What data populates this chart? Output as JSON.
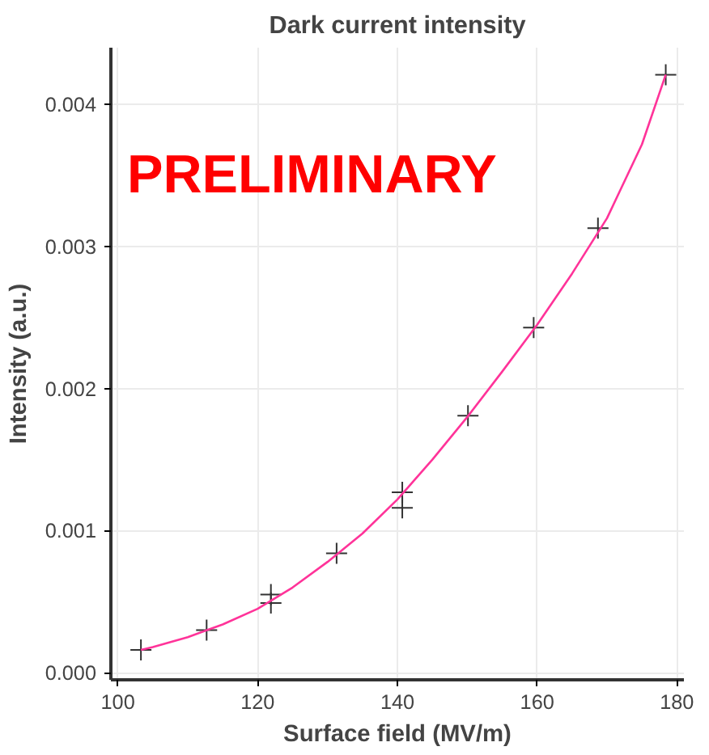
{
  "chart_data": {
    "type": "scatter",
    "title": "Dark current intensity",
    "xlabel": "Surface field (MV/m)",
    "ylabel": "Intensity (a.u.)",
    "annotations": [
      "PRELIMINARY"
    ],
    "xlim": [
      99,
      181
    ],
    "ylim": [
      -5e-05,
      0.0044
    ],
    "xticks": [
      100,
      120,
      140,
      160,
      180
    ],
    "yticks": [
      {
        "value": 0,
        "label": "0.000"
      },
      {
        "value": 0.001,
        "label": "0.001"
      },
      {
        "value": 0.002,
        "label": "0.002"
      },
      {
        "value": 0.003,
        "label": "0.003"
      },
      {
        "value": 0.004,
        "label": "0.004"
      }
    ],
    "grid": true,
    "marker": "cross",
    "series": [
      {
        "color": "#333333",
        "x": [
          103.3,
          112.7,
          121.9,
          121.9,
          131.3,
          140.7,
          140.7,
          150.1,
          159.5,
          168.7,
          178.4
        ],
        "values": [
          0.00016,
          0.0003,
          0.00055,
          0.00049,
          0.00084,
          0.00127,
          0.00116,
          0.00181,
          0.00243,
          0.00313,
          0.00421
        ]
      },
      {
        "type": "line",
        "marker": "none",
        "color": "#ff3399",
        "x": [
          103.3,
          105,
          110,
          115,
          120,
          125,
          130,
          135,
          140,
          145,
          150,
          155,
          160,
          165,
          170,
          175,
          178.4
        ],
        "values": [
          0.00016,
          0.00018,
          0.00025,
          0.00034,
          0.00045,
          0.0006,
          0.00078,
          0.00098,
          0.00122,
          0.0015,
          0.0018,
          0.00212,
          0.00245,
          0.00281,
          0.0032,
          0.00372,
          0.00421
        ]
      }
    ]
  }
}
